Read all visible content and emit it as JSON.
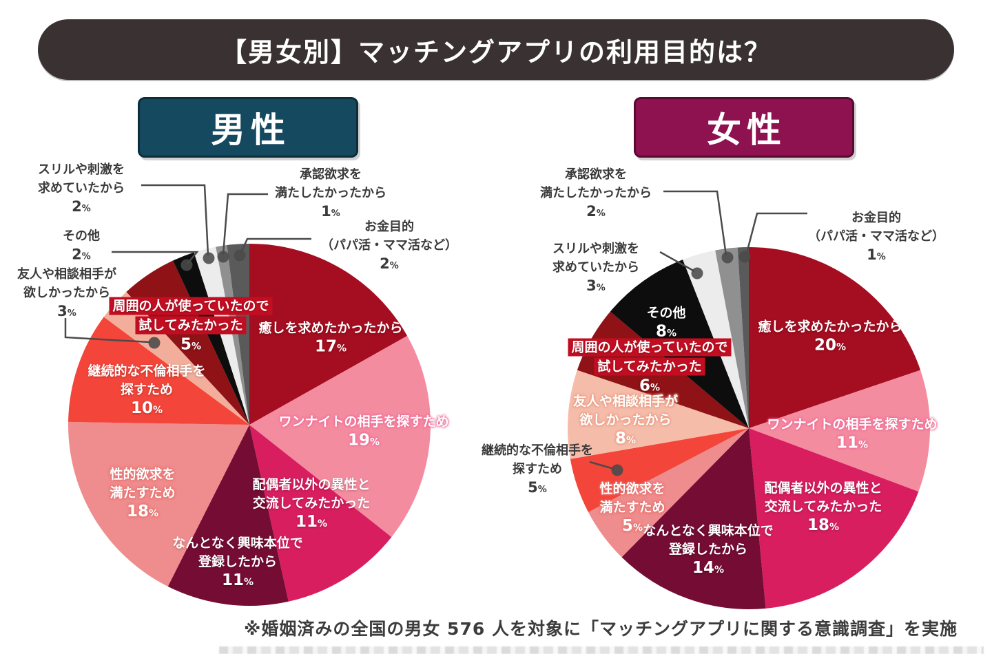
{
  "title": "【男女別】マッチングアプリの利用目的は？",
  "footnote": "※婚姻済みの全国の男女 576 人を対象に「マッチングアプリに関する意識調査」を実施",
  "colors": {
    "banner_bg": "#393132",
    "male_header_bg": "#15495F",
    "female_header_bg": "#8E1150",
    "label_highlight_bg": "#C30E22",
    "leader_line": "#4A4A4A"
  },
  "chart_data": [
    {
      "type": "pie",
      "group": "男性",
      "header_color": "#15495F",
      "start_angle": "12-oclock",
      "direction": "clockwise",
      "slices": [
        {
          "label": "癒しを求めたかったから",
          "lines": [
            "癒しを求めたかったから"
          ],
          "value": 17,
          "color": "#A50D20",
          "placement": "inside"
        },
        {
          "label": "ワンナイトの相手を探すため",
          "lines": [
            "ワンナイトの相手を探すため"
          ],
          "value": 19,
          "color": "#F48CA0",
          "placement": "inside"
        },
        {
          "label": "配偶者以外の異性と交流してみたかった",
          "lines": [
            "配偶者以外の異性と",
            "交流してみたかった"
          ],
          "value": 11,
          "color": "#D81E5F",
          "placement": "inside"
        },
        {
          "label": "なんとなく興味本位で登録したから",
          "lines": [
            "なんとなく興味本位で",
            "登録したから"
          ],
          "value": 11,
          "color": "#750C34",
          "placement": "inside"
        },
        {
          "label": "性的欲求を満たすため",
          "lines": [
            "性的欲求を",
            "満たすため"
          ],
          "value": 18,
          "color": "#EF8C8D",
          "placement": "inside"
        },
        {
          "label": "継続的な不倫相手を探すため",
          "lines": [
            "継続的な不倫相手を",
            "探すため"
          ],
          "value": 10,
          "color": "#F4453A",
          "placement": "inside"
        },
        {
          "label": "友人や相談相手が欲しかったから",
          "lines": [
            "友人や相談相手が",
            "欲しかったから"
          ],
          "value": 3,
          "color": "#F3AD9B",
          "placement": "outside"
        },
        {
          "label": "周囲の人が使っていたので試してみたかった",
          "lines": [
            "周囲の人が使っていたので",
            "試してみたかった"
          ],
          "value": 5,
          "color": "#8E1216",
          "placement": "inside-highlight"
        },
        {
          "label": "その他",
          "lines": [
            "その他"
          ],
          "value": 2,
          "color": "#0D0D0D",
          "placement": "outside"
        },
        {
          "label": "スリルや刺激を求めていたから",
          "lines": [
            "スリルや刺激を",
            "求めていたから"
          ],
          "value": 2,
          "color": "#ECECEC",
          "placement": "outside"
        },
        {
          "label": "承認欲求を満たしたかったから",
          "lines": [
            "承認欲求を",
            "満たしたかったから"
          ],
          "value": 1,
          "color": "#909090",
          "placement": "outside"
        },
        {
          "label": "お金目的（パパ活・ママ活など）",
          "lines": [
            "お金目的",
            "（パパ活・ママ活など）"
          ],
          "value": 2,
          "color": "#5A5A5A",
          "placement": "outside"
        }
      ]
    },
    {
      "type": "pie",
      "group": "女性",
      "header_color": "#8E1150",
      "start_angle": "12-oclock",
      "direction": "clockwise",
      "slices": [
        {
          "label": "癒しを求めたかったから",
          "lines": [
            "癒しを求めたかったから"
          ],
          "value": 20,
          "color": "#A50D20",
          "placement": "inside"
        },
        {
          "label": "ワンナイトの相手を探すため",
          "lines": [
            "ワンナイトの相手を探すため"
          ],
          "value": 11,
          "color": "#F48CA0",
          "placement": "inside"
        },
        {
          "label": "配偶者以外の異性と交流してみたかった",
          "lines": [
            "配偶者以外の異性と",
            "交流してみたかった"
          ],
          "value": 18,
          "color": "#D81E5F",
          "placement": "inside"
        },
        {
          "label": "なんとなく興味本位で登録したから",
          "lines": [
            "なんとなく興味本位で",
            "登録したから"
          ],
          "value": 14,
          "color": "#750C34",
          "placement": "inside"
        },
        {
          "label": "性的欲求を満たすため",
          "lines": [
            "性的欲求を",
            "満たすため"
          ],
          "value": 5,
          "color": "#EF8C8D",
          "placement": "inside"
        },
        {
          "label": "継続的な不倫相手を探すため",
          "lines": [
            "継続的な不倫相手を",
            "探すため"
          ],
          "value": 5,
          "color": "#F4453A",
          "placement": "outside"
        },
        {
          "label": "友人や相談相手が欲しかったから",
          "lines": [
            "友人や相談相手が",
            "欲しかったから"
          ],
          "value": 8,
          "color": "#F5BCAA",
          "placement": "inside"
        },
        {
          "label": "周囲の人が使っていたので試してみたかった",
          "lines": [
            "周囲の人が使っていたので",
            "試してみたかった"
          ],
          "value": 6,
          "color": "#8E1216",
          "placement": "inside-highlight"
        },
        {
          "label": "その他",
          "lines": [
            "その他"
          ],
          "value": 8,
          "color": "#0D0D0D",
          "placement": "inside"
        },
        {
          "label": "スリルや刺激を求めていたから",
          "lines": [
            "スリルや刺激を",
            "求めていたから"
          ],
          "value": 3,
          "color": "#ECECEC",
          "placement": "outside"
        },
        {
          "label": "承認欲求を満たしたかったから",
          "lines": [
            "承認欲求を",
            "満たしたかったから"
          ],
          "value": 2,
          "color": "#909090",
          "placement": "outside"
        },
        {
          "label": "お金目的（パパ活・ママ活など）",
          "lines": [
            "お金目的",
            "（パパ活・ママ活など）"
          ],
          "value": 1,
          "color": "#5A5A5A",
          "placement": "outside"
        }
      ]
    }
  ]
}
